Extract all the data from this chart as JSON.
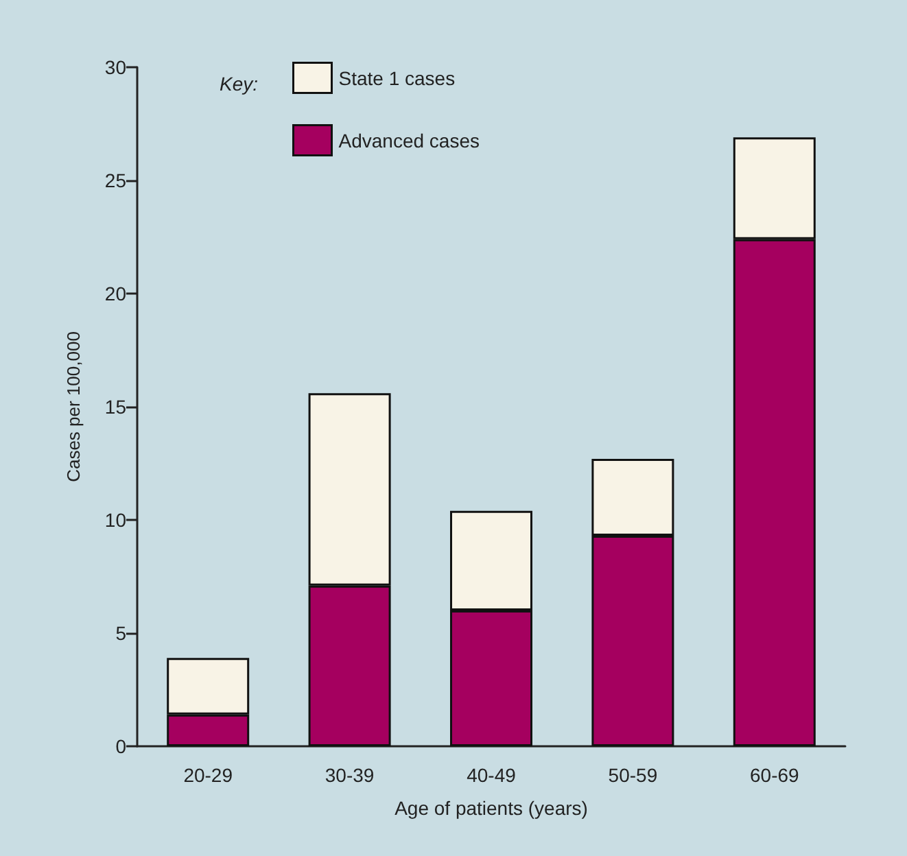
{
  "chart_data": {
    "type": "bar",
    "stacked": true,
    "xlabel": "Age of patients (years)",
    "ylabel": "Cases per 100,000",
    "legend_title": "Key:",
    "legend": "top left",
    "categories": [
      "20-29",
      "30-39",
      "40-49",
      "50-59",
      "60-69"
    ],
    "series": [
      {
        "name": "Advanced cases",
        "color": "#a5005f",
        "values": [
          1.4,
          7.1,
          6.0,
          9.3,
          22.4
        ]
      },
      {
        "name": "State 1 cases",
        "color": "#f8f3e6",
        "values": [
          2.5,
          8.5,
          4.4,
          3.4,
          4.5
        ]
      }
    ],
    "ylim": [
      0,
      30
    ],
    "yticks": [
      0,
      5,
      10,
      15,
      20,
      25,
      30
    ],
    "grid": false
  }
}
